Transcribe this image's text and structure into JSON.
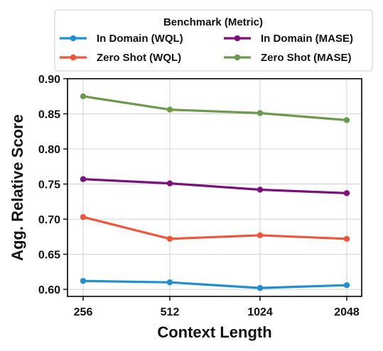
{
  "chart_data": {
    "type": "line",
    "xlabel": "Context Length",
    "ylabel": "Agg. Relative Score",
    "x": [
      "256",
      "512",
      "1024",
      "2048"
    ],
    "ylim": [
      0.59,
      0.9
    ],
    "yticks": [
      "0.60",
      "0.65",
      "0.70",
      "0.75",
      "0.80",
      "0.85",
      "0.90"
    ],
    "grid": true,
    "legend": {
      "title": "Benchmark (Metric)",
      "placement": "top-center, above plot, 2 columns"
    },
    "series": [
      {
        "name": "In Domain (WQL)",
        "color": "#1f8fd1",
        "values": [
          0.612,
          0.61,
          0.602,
          0.606
        ]
      },
      {
        "name": "Zero Shot (WQL)",
        "color": "#f2543a",
        "values": [
          0.703,
          0.672,
          0.677,
          0.672
        ]
      },
      {
        "name": "In Domain (MASE)",
        "color": "#7b0f7b",
        "values": [
          0.757,
          0.751,
          0.742,
          0.737
        ]
      },
      {
        "name": "Zero Shot (MASE)",
        "color": "#6a9a4a",
        "values": [
          0.875,
          0.856,
          0.851,
          0.841
        ]
      }
    ]
  }
}
